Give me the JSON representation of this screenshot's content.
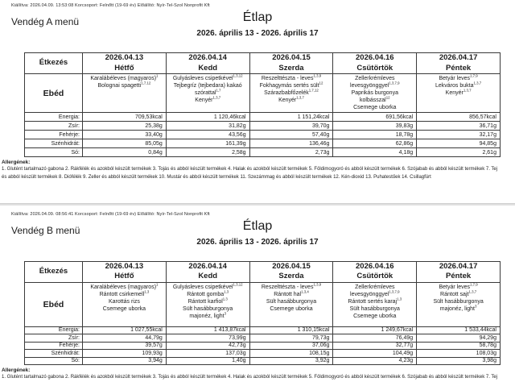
{
  "allergens": {
    "title": "Allergének:",
    "text": "1. Glutént tartalmazó gabona 2. Rákfélék és azokból készült termékek 3. Tojás és abból készült termékek 4. Halak és azokból készült termékek 5. Földimogyoró és abból készült termékek 6. Szójabab és abból készült termékek 7. Tej és abból készült termékek 8. Diófélék 9. Zeller és abból készült termékek 10. Mustár és abból készült termékek 11. Szezámmag és abból készült termékek 12. Kén-dioxid 13. Puhatestűek 14. Csillagfürt"
  },
  "menuA": {
    "meta": "Kiállítva: 2026.04.09. 13:53:08 Korcsoport: Felnőtt (19-69 év) Előállító: Nyír-Tel-Szol Nonprofit Kft",
    "name": "Vendég A menü",
    "title": "Étlap",
    "date_range": "2026. április 13 - 2026. április 17",
    "table": {
      "col0_header": "Étkezés",
      "row_label": "Ebéd",
      "nutrient_labels": [
        "Energia:",
        "Zsír:",
        "Fehérje:",
        "Szénhidrát:",
        "Só:"
      ],
      "days": [
        {
          "date": "2026.04.13",
          "day": "Hétfő",
          "items": [
            "Karalábéleves (magyaros)^1",
            "Bolognai spagetti^1,7,12"
          ],
          "energia": "709,53kcal",
          "zsir": "25,38g",
          "feherje": "33,40g",
          "szenhidrat": "85,05g",
          "so": "0,84g"
        },
        {
          "date": "2026.04.14",
          "day": "Kedd",
          "items": [
            "Gulyásleves csipetkével^1,3,12",
            "Tejbegríz (tejbedara) kakaó szórattal^1,7",
            "Kenyér^1,3,7"
          ],
          "energia": "1 120,46kcal",
          "zsir": "31,82g",
          "feherje": "43,56g",
          "szenhidrat": "161,39g",
          "so": "2,58g"
        },
        {
          "date": "2026.04.15",
          "day": "Szerda",
          "items": [
            "Reszelttészta - leves^1,3,9",
            "Fokhagymás sertés sült^12",
            "Szárazbabfőzelék^1,7,12",
            "Kenyér^1,3,7"
          ],
          "energia": "1 151,24kcal",
          "zsir": "39,70g",
          "feherje": "57,40g",
          "szenhidrat": "136,46g",
          "so": "2,73g"
        },
        {
          "date": "2026.04.16",
          "day": "Csütörtök",
          "items": [
            "Zellerkrémleves levesgyönggyel^1,3,7,9",
            "Paprikás burgonya kolbásszal^12",
            "Csemege uborka"
          ],
          "energia": "691,56kcal",
          "zsir": "39,83g",
          "feherje": "18,78g",
          "szenhidrat": "62,86g",
          "so": "4,18g"
        },
        {
          "date": "2026.04.17",
          "day": "Péntek",
          "items": [
            "Betyár leves^1,7,9",
            "Lekváros bukta^1,3,7",
            "Kenyér^1,3,7"
          ],
          "energia": "856,57kcal",
          "zsir": "36,71g",
          "feherje": "32,17g",
          "szenhidrat": "94,85g",
          "so": "2,61g"
        }
      ]
    }
  },
  "menuB": {
    "meta": "Kiállítva: 2026.04.09. 08:56:41 Korcsoport: Felnőtt (19-69 év) Előállító: Nyír-Tel-Szol Nonprofit Kft",
    "name": "Vendég B menü",
    "title": "Étlap",
    "date_range": "2026. április 13 - 2026. április 17",
    "table": {
      "col0_header": "Étkezés",
      "row_label": "Ebéd",
      "nutrient_labels": [
        "Energia:",
        "Zsír:",
        "Fehérje:",
        "Szénhidrát:",
        "Só:"
      ],
      "days": [
        {
          "date": "2026.04.13",
          "day": "Hétfő",
          "items": [
            "Karalábéleves (magyaros)^1",
            "Rántott csirkemell^1,3",
            "Karottás rizs",
            "Csemege uborka"
          ],
          "energia": "1 027,55kcal",
          "zsir": "44,79g",
          "feherje": "39,57g",
          "szenhidrat": "109,93g",
          "so": "3,94g"
        },
        {
          "date": "2026.04.14",
          "day": "Kedd",
          "items": [
            "Gulyásleves csipetkével^1,3,12",
            "Rántott gomba^1,3",
            "Rántott karfiol^1,3",
            "Sült hasábburgonya",
            "majonéz, light^3"
          ],
          "energia": "1 413,87kcal",
          "zsir": "73,99g",
          "feherje": "42,73g",
          "szenhidrat": "137,03g",
          "so": "1,40g"
        },
        {
          "date": "2026.04.15",
          "day": "Szerda",
          "items": [
            "Reszelttészta - leves^1,3,9",
            "Rántott hal^1,3,4",
            "Sült hasábburgonya",
            "Csemege uborka"
          ],
          "energia": "1 310,15kcal",
          "zsir": "79,73g",
          "feherje": "37,06g",
          "szenhidrat": "108,15g",
          "so": "3,92g"
        },
        {
          "date": "2026.04.16",
          "day": "Csütörtök",
          "items": [
            "Zellerkrémleves levesgyönggyel^1,3,7,9",
            "Rántott sertés karaj^1,3",
            "Sült hasábburgonya",
            "Csemege uborka"
          ],
          "energia": "1 249,67kcal",
          "zsir": "76,49g",
          "feherje": "32,77g",
          "szenhidrat": "104,49g",
          "so": "4,23g"
        },
        {
          "date": "2026.04.17",
          "day": "Péntek",
          "items": [
            "Betyár leves^1,7,9",
            "Rántott sajt^1,3,7",
            "Sült hasábburgonya",
            "majonéz, light^3"
          ],
          "energia": "1 533,44kcal",
          "zsir": "94,29g",
          "feherje": "58,78g",
          "szenhidrat": "108,03g",
          "so": "3,98g"
        }
      ]
    }
  }
}
